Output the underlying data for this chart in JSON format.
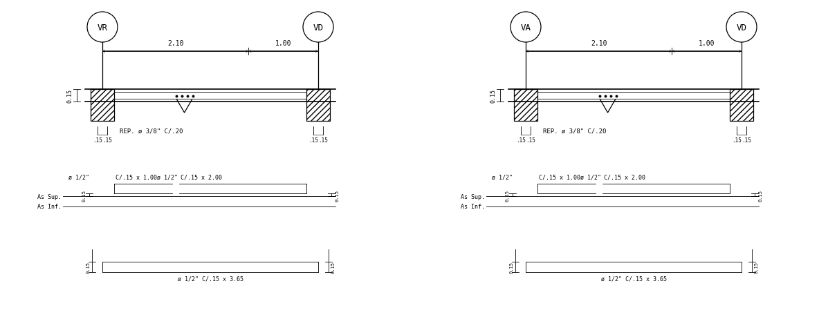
{
  "bg_color": "#ffffff",
  "line_color": "#000000",
  "panel1_left_label": "VR",
  "panel1_right_label": "VD",
  "panel2_left_label": "VA",
  "panel2_right_label": "VD",
  "dim_21": "2.10",
  "dim_10": "1.00",
  "dim_015": "0.15",
  "rep_label": "REP. ø 3/8\" C/.20",
  "label_bar1_a": "ø 1/2\"",
  "label_bar1_b": "C/.15 x 1.00",
  "label_bar2_a": "ø 1/2\"",
  "label_bar2_b": "C/.15 x 2.00",
  "label_bar3": "ø 1/2\" C/.15 x 3.65",
  "as_sup": "As Sup.",
  "as_inf": "As Inf.",
  "tick_015": ".15"
}
